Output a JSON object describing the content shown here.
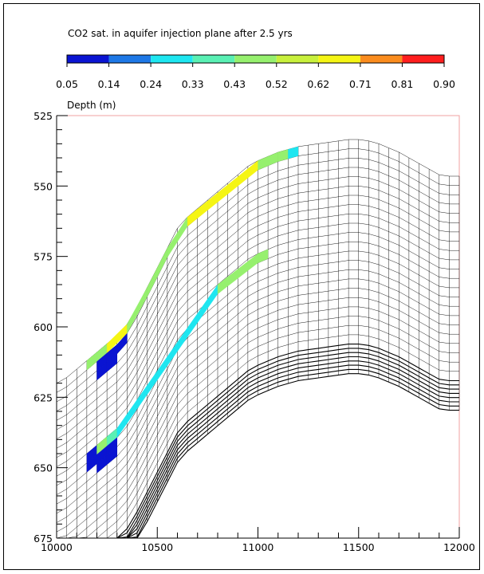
{
  "chart_data": {
    "type": "heatmap",
    "title": "CO2 sat. in aquifer injection plane after 2.5 yrs",
    "ylabel": "Depth (m)",
    "xlabel": "",
    "xlim": [
      10000,
      12000
    ],
    "ylim": [
      525,
      675
    ],
    "y_inverted": true,
    "xticks": [
      "10000",
      "10500",
      "11000",
      "11500",
      "12000"
    ],
    "yticks": [
      "525",
      "550",
      "575",
      "600",
      "625",
      "650",
      "675"
    ],
    "colorbar": {
      "ticks": [
        "0.05",
        "0.14",
        "0.24",
        "0.33",
        "0.43",
        "0.52",
        "0.62",
        "0.71",
        "0.81",
        "0.90"
      ],
      "colors": [
        "#0a14d2",
        "#1e78e6",
        "#1ee6f0",
        "#5af0b4",
        "#96f06e",
        "#c8f03c",
        "#f5f514",
        "#fa8c1e",
        "#ff1e1e"
      ]
    },
    "grid_columns_x": [
      10000,
      10050,
      10100,
      10150,
      10200,
      10250,
      10300,
      10350,
      10400,
      10450,
      10500,
      10550,
      10600,
      10650,
      10700,
      10750,
      10800,
      10850,
      10900,
      10950,
      11000,
      11050,
      11100,
      11150,
      11200,
      11250,
      11300,
      11350,
      11400,
      11450,
      11500,
      11550,
      11600,
      11650,
      11700,
      11750,
      11800,
      11850,
      11900,
      11950,
      12000
    ],
    "grid_top_depth": [
      620,
      618,
      615,
      612,
      609,
      606,
      603,
      599,
      593,
      586,
      579,
      572,
      565,
      561,
      558,
      555,
      552,
      549,
      546,
      543,
      541,
      539.5,
      538,
      537,
      536,
      535.5,
      535,
      534.5,
      534,
      533.5,
      533.5,
      534,
      535,
      536.5,
      538,
      540,
      542,
      544,
      546,
      546.5,
      546.5
    ],
    "grid_thin_layers": 22,
    "grid_thin_layer_thickness": 3.3,
    "grid_thick_layers": 7,
    "grid_thick_layer_thickness": 1.5,
    "saturation_bands": [
      {
        "layer": 0,
        "cells": [
          {
            "x0": 10150,
            "x1": 10200,
            "value": 0.43
          },
          {
            "x0": 10200,
            "x1": 10250,
            "value": 0.52
          },
          {
            "x0": 10250,
            "x1": 10350,
            "value": 0.62
          },
          {
            "x0": 10350,
            "x1": 10450,
            "value": 0.52
          },
          {
            "x0": 10450,
            "x1": 10550,
            "value": 0.48
          },
          {
            "x0": 10550,
            "x1": 10650,
            "value": 0.43
          },
          {
            "x0": 10650,
            "x1": 11000,
            "value": 0.66
          },
          {
            "x0": 11000,
            "x1": 11100,
            "value": 0.52
          },
          {
            "x0": 11100,
            "x1": 11150,
            "value": 0.43
          },
          {
            "x0": 11150,
            "x1": 11200,
            "value": 0.28
          }
        ]
      },
      {
        "layer": 10,
        "cells": [
          {
            "x0": 10150,
            "x1": 10200,
            "value": 0.1
          },
          {
            "x0": 10200,
            "x1": 10250,
            "value": 0.52
          },
          {
            "x0": 10250,
            "x1": 10300,
            "value": 0.38
          },
          {
            "x0": 10300,
            "x1": 10800,
            "value": 0.33
          },
          {
            "x0": 10800,
            "x1": 11000,
            "value": 0.43
          },
          {
            "x0": 11000,
            "x1": 11050,
            "value": 0.52
          }
        ]
      },
      {
        "layer": 1,
        "cells": [
          {
            "x0": 10200,
            "x1": 10250,
            "value": 0.1
          },
          {
            "x0": 10250,
            "x1": 10300,
            "value": 0.1
          },
          {
            "x0": 10300,
            "x1": 10350,
            "value": 0.1
          }
        ]
      },
      {
        "layer": 2,
        "cells": [
          {
            "x0": 10200,
            "x1": 10250,
            "value": 0.1
          },
          {
            "x0": 10250,
            "x1": 10300,
            "value": 0.1
          }
        ]
      },
      {
        "layer": 11,
        "cells": [
          {
            "x0": 10150,
            "x1": 10200,
            "value": 0.1
          },
          {
            "x0": 10200,
            "x1": 10250,
            "value": 0.1
          },
          {
            "x0": 10250,
            "x1": 10300,
            "value": 0.1
          }
        ]
      },
      {
        "layer": 12,
        "cells": [
          {
            "x0": 10200,
            "x1": 10250,
            "value": 0.1
          },
          {
            "x0": 10250,
            "x1": 10300,
            "value": 0.1
          }
        ]
      }
    ]
  }
}
